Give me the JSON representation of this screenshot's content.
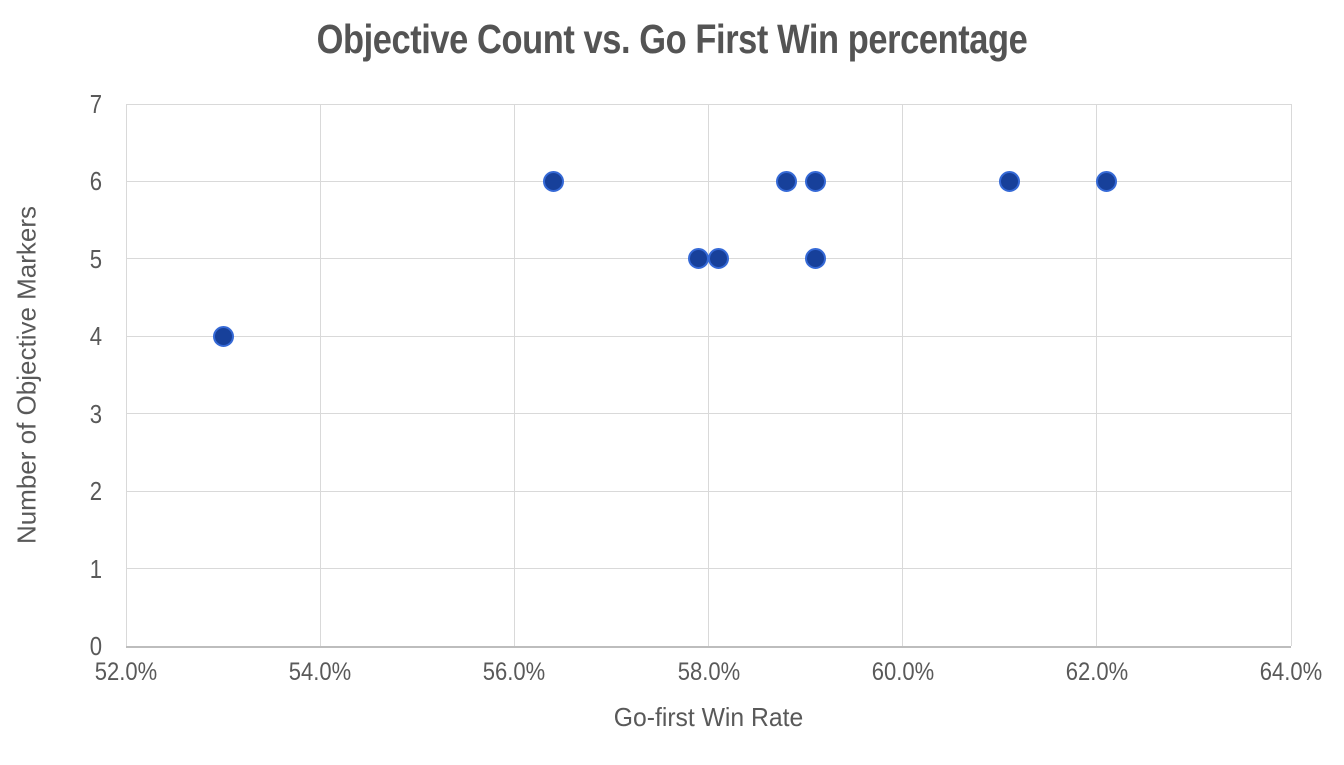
{
  "chart_data": {
    "type": "scatter",
    "title": "Objective Count vs. Go First Win percentage",
    "xlabel": "Go-first Win Rate",
    "ylabel": "Number of Objective Markers",
    "xlim": [
      52,
      64
    ],
    "ylim": [
      0,
      7
    ],
    "grid": true,
    "legend": false,
    "x_ticks": [
      {
        "value": 52,
        "label": "52.0%"
      },
      {
        "value": 54,
        "label": "54.0%"
      },
      {
        "value": 56,
        "label": "56.0%"
      },
      {
        "value": 58,
        "label": "58.0%"
      },
      {
        "value": 60,
        "label": "60.0%"
      },
      {
        "value": 62,
        "label": "62.0%"
      },
      {
        "value": 64,
        "label": "64.0%"
      }
    ],
    "y_ticks": [
      {
        "value": 0,
        "label": "0"
      },
      {
        "value": 1,
        "label": "1"
      },
      {
        "value": 2,
        "label": "2"
      },
      {
        "value": 3,
        "label": "3"
      },
      {
        "value": 4,
        "label": "4"
      },
      {
        "value": 5,
        "label": "5"
      },
      {
        "value": 6,
        "label": "6"
      },
      {
        "value": 7,
        "label": "7"
      }
    ],
    "points": [
      {
        "x": 53.0,
        "y": 4
      },
      {
        "x": 56.4,
        "y": 6
      },
      {
        "x": 57.9,
        "y": 5
      },
      {
        "x": 58.1,
        "y": 5
      },
      {
        "x": 58.8,
        "y": 6
      },
      {
        "x": 59.1,
        "y": 6
      },
      {
        "x": 59.1,
        "y": 5
      },
      {
        "x": 61.1,
        "y": 6
      },
      {
        "x": 62.1,
        "y": 6
      }
    ],
    "marker_fill": "#17409a",
    "marker_border": "#3569d6",
    "grid_color": "#d9d9d9",
    "axis_line_color": "#bdbdbd",
    "text_color": "#595959",
    "title_color": "#545454"
  }
}
